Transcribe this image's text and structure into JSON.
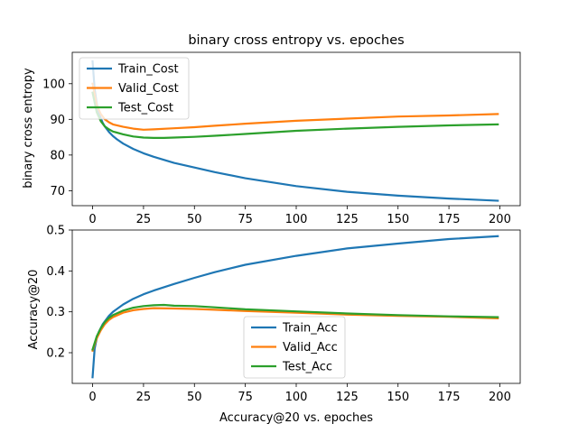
{
  "colors": {
    "train": "#1f77b4",
    "valid": "#ff7f0e",
    "test": "#2ca02c"
  },
  "chart_data": [
    {
      "type": "line",
      "title": "binary cross entropy vs. epoches",
      "xlabel": "",
      "ylabel": "binary cross entropy",
      "xlim": [
        -10,
        210
      ],
      "ylim": [
        65.8,
        108.8
      ],
      "xticks": [
        0,
        25,
        50,
        75,
        100,
        125,
        150,
        175,
        200
      ],
      "yticks": [
        70,
        80,
        90,
        100
      ],
      "legend": "upper-left",
      "series": [
        {
          "name": "Train_Cost",
          "color_key": "train",
          "x": [
            0,
            1,
            2,
            3,
            4,
            5,
            6,
            8,
            10,
            12,
            15,
            20,
            25,
            30,
            40,
            50,
            60,
            75,
            100,
            125,
            150,
            175,
            199
          ],
          "y": [
            106.3,
            98.5,
            94.5,
            92,
            90.3,
            89,
            88,
            86.5,
            85.3,
            84.4,
            83.2,
            81.7,
            80.5,
            79.5,
            77.8,
            76.5,
            75.2,
            73.5,
            71.3,
            69.7,
            68.6,
            67.8,
            67.2
          ]
        },
        {
          "name": "Valid_Cost",
          "color_key": "valid",
          "x": [
            0,
            2,
            4,
            6,
            8,
            10,
            15,
            20,
            25,
            30,
            40,
            50,
            60,
            75,
            100,
            125,
            150,
            175,
            199
          ],
          "y": [
            100,
            94,
            91.5,
            90,
            89.2,
            88.6,
            87.9,
            87.4,
            87.1,
            87.2,
            87.5,
            87.8,
            88.2,
            88.8,
            89.6,
            90.2,
            90.8,
            91.1,
            91.5
          ]
        },
        {
          "name": "Test_Cost",
          "color_key": "test",
          "x": [
            0,
            2,
            4,
            6,
            8,
            10,
            15,
            20,
            25,
            30,
            35,
            40,
            50,
            60,
            75,
            100,
            125,
            150,
            175,
            199
          ],
          "y": [
            97.5,
            92,
            89.5,
            88,
            87.2,
            86.6,
            85.8,
            85.2,
            84.9,
            84.8,
            84.8,
            84.9,
            85.1,
            85.4,
            85.9,
            86.8,
            87.4,
            87.9,
            88.3,
            88.6
          ]
        }
      ]
    },
    {
      "type": "line",
      "title": "",
      "xlabel": "Accuracy@20 vs. epoches",
      "ylabel": "Accuracy@20",
      "xlim": [
        -10,
        210
      ],
      "ylim": [
        0.125,
        0.5
      ],
      "xticks": [
        0,
        25,
        50,
        75,
        100,
        125,
        150,
        175,
        200
      ],
      "yticks": [
        0.2,
        0.3,
        0.4,
        0.5
      ],
      "legend": "lower-center",
      "series": [
        {
          "name": "Train_Acc",
          "color_key": "train",
          "x": [
            0,
            1,
            2,
            3,
            5,
            8,
            10,
            15,
            20,
            25,
            30,
            40,
            50,
            60,
            75,
            100,
            125,
            150,
            175,
            199
          ],
          "y": [
            0.14,
            0.21,
            0.235,
            0.25,
            0.27,
            0.29,
            0.3,
            0.318,
            0.332,
            0.343,
            0.352,
            0.368,
            0.383,
            0.397,
            0.415,
            0.437,
            0.455,
            0.467,
            0.478,
            0.485
          ]
        },
        {
          "name": "Valid_Acc",
          "color_key": "valid",
          "x": [
            0,
            2,
            4,
            6,
            8,
            10,
            15,
            20,
            25,
            30,
            40,
            50,
            60,
            75,
            100,
            125,
            150,
            175,
            199
          ],
          "y": [
            0.205,
            0.235,
            0.255,
            0.27,
            0.28,
            0.287,
            0.298,
            0.304,
            0.307,
            0.309,
            0.308,
            0.307,
            0.305,
            0.302,
            0.298,
            0.293,
            0.29,
            0.288,
            0.284
          ]
        },
        {
          "name": "Test_Acc",
          "color_key": "test",
          "x": [
            0,
            2,
            4,
            6,
            8,
            10,
            15,
            20,
            25,
            30,
            35,
            40,
            50,
            60,
            75,
            100,
            125,
            150,
            175,
            199
          ],
          "y": [
            0.208,
            0.24,
            0.26,
            0.275,
            0.285,
            0.292,
            0.303,
            0.31,
            0.314,
            0.316,
            0.317,
            0.315,
            0.314,
            0.311,
            0.306,
            0.301,
            0.296,
            0.292,
            0.289,
            0.287
          ]
        }
      ]
    }
  ]
}
